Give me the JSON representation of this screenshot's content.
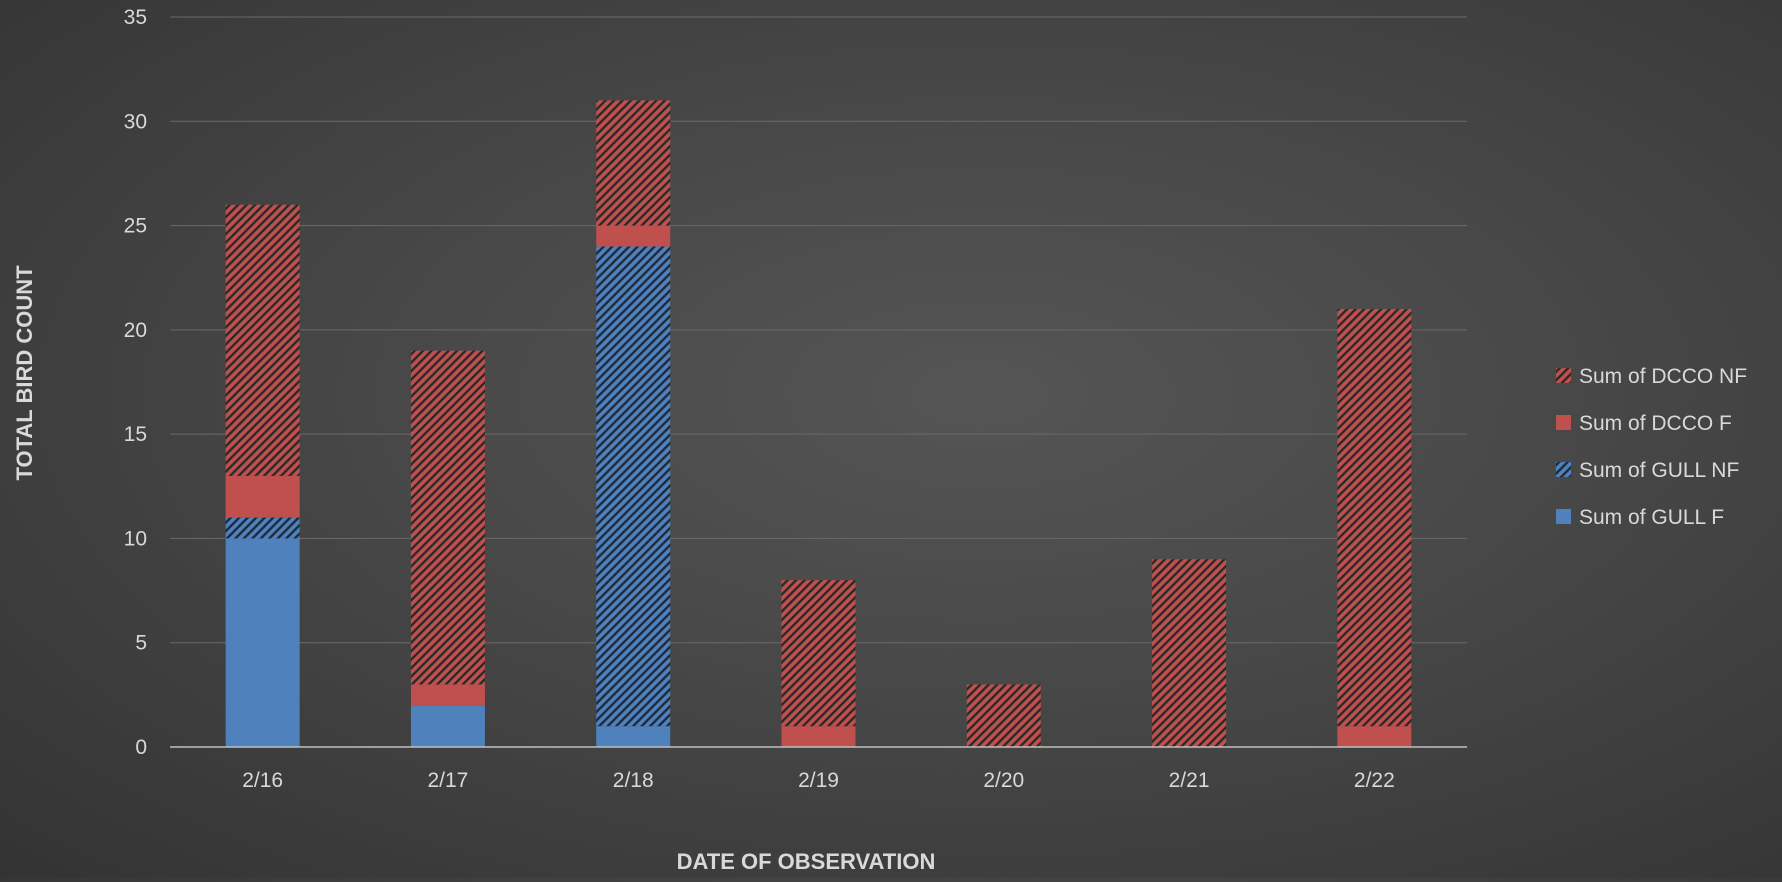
{
  "chart_data": {
    "type": "bar",
    "stacked": true,
    "categories": [
      "2/16",
      "2/17",
      "2/18",
      "2/19",
      "2/20",
      "2/21",
      "2/22"
    ],
    "series": [
      {
        "name": "Sum of GULL F",
        "values": [
          10,
          2,
          1,
          0,
          0,
          0,
          0
        ],
        "color": "#4f81bd",
        "pattern": "solid"
      },
      {
        "name": "Sum of GULL NF",
        "values": [
          1,
          0,
          23,
          0,
          0,
          0,
          0
        ],
        "color": "#4f81bd",
        "pattern": "hatched"
      },
      {
        "name": "Sum of DCCO F",
        "values": [
          2,
          1,
          1,
          1,
          0,
          0,
          1
        ],
        "color": "#c0504d",
        "pattern": "solid"
      },
      {
        "name": "Sum of DCCO NF",
        "values": [
          13,
          16,
          6,
          7,
          3,
          9,
          20
        ],
        "color": "#c0504d",
        "pattern": "hatched"
      }
    ],
    "title": "",
    "xlabel": "DATE OF OBSERVATION",
    "ylabel": "TOTAL BIRD COUNT",
    "ylim": [
      0,
      35
    ],
    "yticks": [
      0,
      5,
      10,
      15,
      20,
      25,
      30,
      35
    ],
    "grid": true,
    "legend_position": "right",
    "legend_order": [
      "Sum of DCCO NF",
      "Sum of DCCO F",
      "Sum of GULL NF",
      "Sum of GULL F"
    ]
  }
}
